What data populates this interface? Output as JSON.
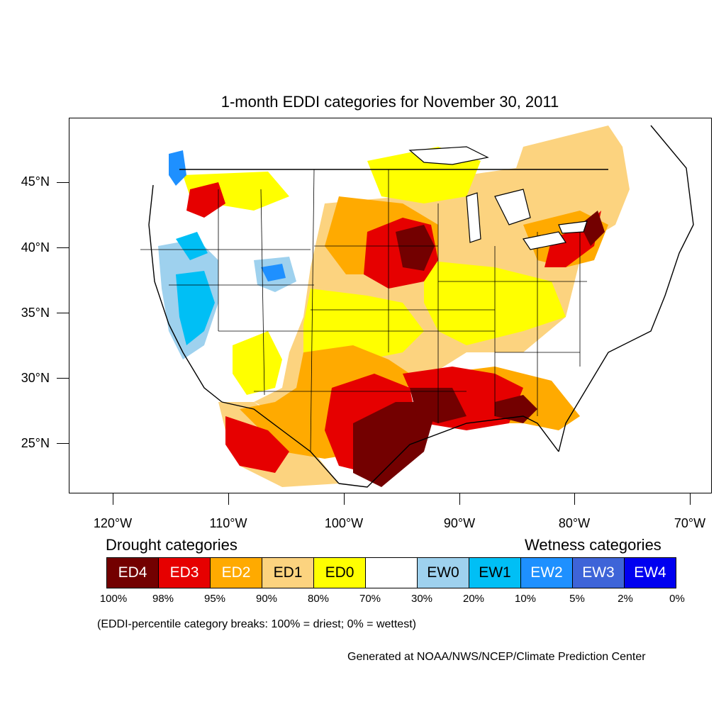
{
  "title": "1-month EDDI categories for November 30, 2011",
  "lat_labels": [
    "45°N",
    "40°N",
    "35°N",
    "30°N",
    "25°N"
  ],
  "lon_labels": [
    "120°W",
    "110°W",
    "100°W",
    "90°W",
    "80°W",
    "70°W"
  ],
  "legend": {
    "drought_heading": "Drought categories",
    "wetness_heading": "Wetness categories",
    "categories": [
      {
        "label": "ED4",
        "color": "#730000",
        "text_color": "#ffffff"
      },
      {
        "label": "ED3",
        "color": "#e60000",
        "text_color": "#ffffff"
      },
      {
        "label": "ED2",
        "color": "#ffaa00",
        "text_color": "#ffffff"
      },
      {
        "label": "ED1",
        "color": "#fcd37f",
        "text_color": "#000000"
      },
      {
        "label": "ED0",
        "color": "#ffff00",
        "text_color": "#000000"
      },
      {
        "label": "",
        "color": "#ffffff",
        "text_color": "#000000"
      },
      {
        "label": "EW0",
        "color": "#9ed1ee",
        "text_color": "#000000"
      },
      {
        "label": "EW1",
        "color": "#00bff5",
        "text_color": "#000000"
      },
      {
        "label": "EW2",
        "color": "#1e90ff",
        "text_color": "#ffffff"
      },
      {
        "label": "EW3",
        "color": "#3e64d8",
        "text_color": "#ffffff"
      },
      {
        "label": "EW4",
        "color": "#0000f0",
        "text_color": "#ffffff"
      }
    ],
    "percentiles": [
      "100%",
      "98%",
      "95%",
      "90%",
      "80%",
      "70%",
      "30%",
      "20%",
      "10%",
      "5%",
      "2%",
      "0%"
    ]
  },
  "note": "(EDDI-percentile category breaks: 100% = driest; 0% = wettest)",
  "credit": "Generated at NOAA/NWS/NCEP/Climate Prediction Center"
}
